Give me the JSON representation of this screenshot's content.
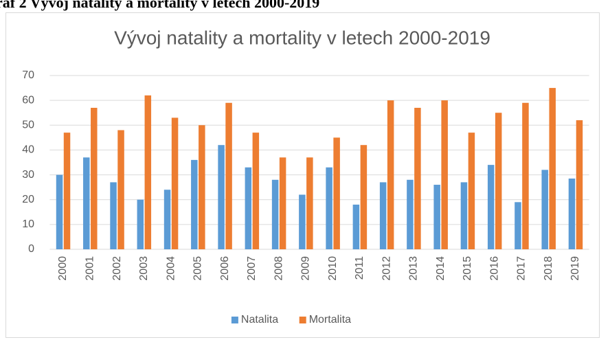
{
  "heading": "raf 2 Vývoj natality a mortality v letech 2000-2019",
  "chart_data": {
    "type": "bar",
    "title": "Vývoj natality a mortality v letech 2000-2019",
    "categories": [
      "2000",
      "2001",
      "2002",
      "2003",
      "2004",
      "2005",
      "2006",
      "2007",
      "2008",
      "2009",
      "2010",
      "2011",
      "2012",
      "2013",
      "2014",
      "2015",
      "2016",
      "2017",
      "2018",
      "2019"
    ],
    "series": [
      {
        "name": "Natalita",
        "color": "#5b9bd5",
        "values": [
          30,
          37,
          27,
          20,
          24,
          36,
          42,
          33,
          28,
          22,
          33,
          18,
          27,
          28,
          26,
          27,
          34,
          19,
          32,
          28.5
        ]
      },
      {
        "name": "Mortalita",
        "color": "#ed7d31",
        "values": [
          47,
          57,
          48,
          62,
          53,
          50,
          59,
          47,
          37,
          37,
          45,
          42,
          60,
          57,
          60,
          47,
          55,
          59,
          65,
          52
        ]
      }
    ],
    "ylim": [
      0,
      70
    ],
    "yticks": [
      0,
      10,
      20,
      30,
      40,
      50,
      60,
      70
    ],
    "grid": true,
    "legend": "bottom"
  }
}
